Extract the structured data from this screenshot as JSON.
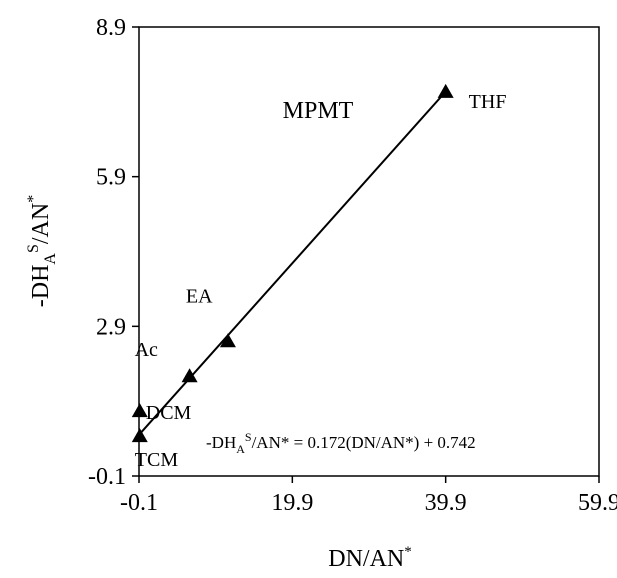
{
  "chart_data": {
    "type": "scatter",
    "panel_label": "MPMT",
    "xlabel": {
      "main": "DN/AN",
      "sup": "*"
    },
    "ylabel": {
      "pre": "-DH",
      "sub": "A",
      "sup1": "S",
      "post": "/AN",
      "sup2": "*"
    },
    "xlim": [
      -0.1,
      59.9
    ],
    "ylim": [
      -0.1,
      8.9
    ],
    "x_ticks": [
      {
        "value": -0.1,
        "label": "-0.1"
      },
      {
        "value": 19.9,
        "label": "19.9"
      },
      {
        "value": 39.9,
        "label": "39.9"
      },
      {
        "value": 59.9,
        "label": "59.9"
      }
    ],
    "y_ticks": [
      {
        "value": -0.1,
        "label": "-0.1"
      },
      {
        "value": 2.9,
        "label": "2.9"
      },
      {
        "value": 5.9,
        "label": "5.9"
      },
      {
        "value": 8.9,
        "label": "8.9"
      }
    ],
    "grid": false,
    "marker": "triangle",
    "points": [
      {
        "label": "TCM",
        "x": 0.0,
        "y": 0.7
      },
      {
        "label": "DCM",
        "x": 0.0,
        "y": 1.2
      },
      {
        "label": "Ac",
        "x": 6.5,
        "y": 1.9
      },
      {
        "label": "EA",
        "x": 11.5,
        "y": 2.6
      },
      {
        "label": "THF",
        "x": 39.9,
        "y": 7.6
      }
    ],
    "fit_line": {
      "slope": 0.172,
      "intercept": 0.742,
      "x_range": [
        -0.1,
        39.9
      ]
    },
    "equation": {
      "pre": "-DH",
      "sub": "A",
      "sup": "S",
      "post": "/AN* = 0.172(DN/AN*) + 0.742"
    }
  }
}
